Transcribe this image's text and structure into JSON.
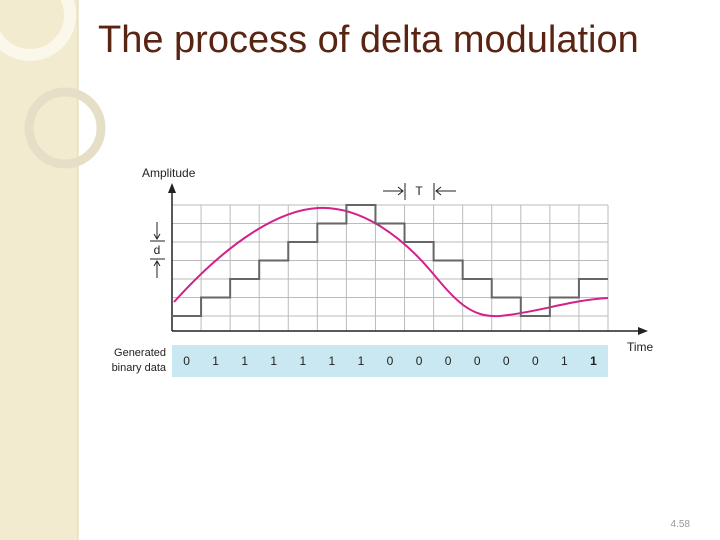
{
  "header": {
    "title": "The process of delta modulation"
  },
  "diagram": {
    "y_axis_label": "Amplitude",
    "x_axis_label": "Time",
    "period_label": "T",
    "step_label": "d",
    "data_label": [
      "Generated",
      "binary data"
    ],
    "bits": [
      0,
      1,
      1,
      1,
      1,
      1,
      1,
      0,
      0,
      0,
      0,
      0,
      0,
      1,
      1
    ]
  },
  "footer": {
    "page_number": "4.58"
  }
}
